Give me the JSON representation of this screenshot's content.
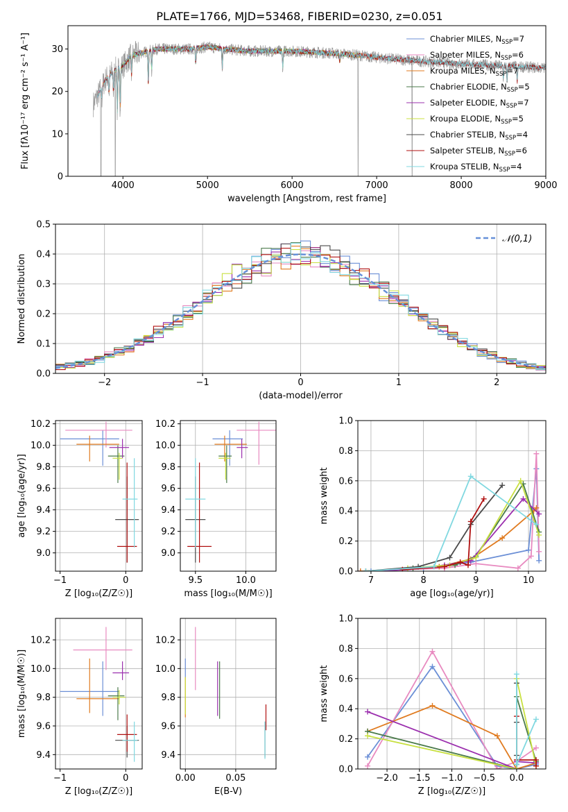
{
  "title": "PLATE=1766, MJD=53468, FIBERID=0230, z=0.051",
  "colors": {
    "chabrier_miles": "#6b8fd6",
    "salpeter_miles": "#e88ac0",
    "kroupa_miles": "#e07b20",
    "chabrier_elodie": "#4a7a4a",
    "salpeter_elodie": "#9b2fae",
    "kroupa_elodie": "#c8e040",
    "chabrier_stelib": "#4a4a4a",
    "salpeter_stelib": "#b01010",
    "kroupa_stelib": "#80d8e0",
    "gaussian": "#6690d8",
    "grid": "#b0b0b0"
  },
  "chart_data": [
    {
      "id": "spectrum",
      "type": "line",
      "xlabel": "wavelength [Angstrom, rest frame]",
      "ylabel": "Flux [fλ10⁻¹⁷ erg cm⁻² s⁻¹ A⁻¹]",
      "xlim": [
        3350,
        9000
      ],
      "ylim": [
        0,
        35.5
      ],
      "xticks": [
        4000,
        5000,
        6000,
        7000,
        8000,
        9000
      ],
      "yticks": [
        0,
        10,
        20,
        30
      ],
      "grid": false,
      "legend_position": "top-right",
      "legend": [
        "Chabrier MILES, N_SSP=7",
        "Salpeter MILES, N_SSP=6",
        "Kroupa MILES, N_SSP=7",
        "Chabrier ELODIE, N_SSP=5",
        "Salpeter ELODIE, N_SSP=7",
        "Kroupa ELODIE, N_SSP=5",
        "Chabrier STELIB, N_SSP=4",
        "Salpeter STELIB, N_SSP=6",
        "Kroupa STELIB, N_SSP=4"
      ],
      "model_ranges": [
        [
          3700,
          7400
        ],
        [
          3700,
          7400
        ],
        [
          3700,
          7400
        ],
        [
          3900,
          6800
        ],
        [
          3900,
          6800
        ],
        [
          3900,
          6800
        ],
        [
          3700,
          9000
        ],
        [
          3700,
          9000
        ],
        [
          3700,
          9000
        ]
      ],
      "continuum": [
        [
          3650,
          17
        ],
        [
          3700,
          19
        ],
        [
          3800,
          23
        ],
        [
          3900,
          25
        ],
        [
          4000,
          26
        ],
        [
          4100,
          28.5
        ],
        [
          4200,
          29
        ],
        [
          4400,
          30
        ],
        [
          4600,
          30
        ],
        [
          4800,
          30
        ],
        [
          5000,
          30.5
        ],
        [
          5200,
          30
        ],
        [
          5500,
          29.5
        ],
        [
          6000,
          29.5
        ],
        [
          6500,
          29
        ],
        [
          6800,
          28.5
        ],
        [
          7000,
          28
        ],
        [
          7300,
          27.5
        ],
        [
          7600,
          27
        ],
        [
          8000,
          26.5
        ],
        [
          8500,
          26
        ],
        [
          9000,
          25.5
        ]
      ],
      "absorption_lines": [
        [
          3750,
          3
        ],
        [
          3835,
          5
        ],
        [
          3889,
          6
        ],
        [
          3934,
          11
        ],
        [
          3968,
          11
        ],
        [
          4102,
          5
        ],
        [
          4300,
          8
        ],
        [
          4340,
          5
        ],
        [
          4861,
          4
        ],
        [
          5175,
          5
        ],
        [
          5890,
          4
        ],
        [
          6563,
          2
        ],
        [
          8498,
          3
        ],
        [
          8542,
          4
        ],
        [
          8662,
          4
        ]
      ],
      "observed_gaps": [
        [
          3740,
          0
        ],
        [
          3910,
          0
        ],
        [
          6780,
          0
        ],
        [
          7420,
          0
        ]
      ],
      "noise_amplitude": 1.4
    },
    {
      "id": "residuals",
      "type": "histogram",
      "xlabel": "(data-model)/error",
      "ylabel": "Normed distribution",
      "xlim": [
        -2.5,
        2.5
      ],
      "ylim": [
        0,
        0.5
      ],
      "xticks": [
        -2,
        -1,
        0,
        1,
        2
      ],
      "yticks": [
        0,
        0.1,
        0.2,
        0.3,
        0.4,
        0.5
      ],
      "grid": true,
      "bin_width": 0.1,
      "legend_position": "top-right",
      "legend": [
        "𝒩(0,1)"
      ]
    },
    {
      "id": "age_vs_z",
      "type": "errorbar",
      "xlabel": "Z [log₁₀(Z/Z☉)]",
      "ylabel": "age  [log₁₀(age/yr)]",
      "xlim": [
        -1.07,
        0.25
      ],
      "ylim": [
        8.83,
        10.23
      ],
      "xticks": [
        -1,
        0
      ],
      "yticks": [
        9.0,
        9.2,
        9.4,
        9.6,
        9.8,
        10.0,
        10.2
      ],
      "grid": true,
      "points": [
        {
          "x": -0.35,
          "xerr": [
            0.65,
            0.25
          ],
          "y": 10.06,
          "yerr": [
            0.25,
            0.08
          ]
        },
        {
          "x": -0.3,
          "xerr": [
            0.62,
            0.4
          ],
          "y": 10.14,
          "yerr": [
            0.16,
            0.08
          ]
        },
        {
          "x": -0.55,
          "xerr": [
            0.2,
            0.45
          ],
          "y": 10.01,
          "yerr": [
            0.16,
            0.08
          ]
        },
        {
          "x": -0.12,
          "xerr": [
            0.15,
            0.1
          ],
          "y": 9.9,
          "yerr": [
            0.25,
            0.1
          ]
        },
        {
          "x": -0.05,
          "xerr": [
            0.2,
            0.1
          ],
          "y": 9.98,
          "yerr": [
            0.1,
            0.08
          ]
        },
        {
          "x": -0.1,
          "xerr": [
            0.1,
            0.05
          ],
          "y": 9.88,
          "yerr": [
            0.2,
            0.05
          ]
        },
        {
          "x": 0.02,
          "xerr": [
            0.18,
            0.18
          ],
          "y": 9.31,
          "yerr": [
            0.4,
            0.4
          ]
        },
        {
          "x": 0.02,
          "xerr": [
            0.15,
            0.15
          ],
          "y": 9.06,
          "yerr": [
            0.15,
            0.78
          ]
        },
        {
          "x": 0.13,
          "xerr": [
            0.18,
            0.05
          ],
          "y": 9.5,
          "yerr": [
            0.45,
            0.38
          ]
        }
      ]
    },
    {
      "id": "age_vs_mass",
      "type": "errorbar",
      "xlabel": "mass [log₁₀(M/M☉)]",
      "ylabel": "",
      "xlim": [
        9.35,
        10.3
      ],
      "ylim": [
        8.83,
        10.23
      ],
      "xticks": [
        9.5,
        10.0
      ],
      "yticks": [
        9.0,
        9.2,
        9.4,
        9.6,
        9.8,
        10.0,
        10.2
      ],
      "grid": true,
      "points": [
        {
          "x": 9.84,
          "xerr": [
            0.17,
            0.13
          ],
          "y": 10.06,
          "yerr": [
            0.25,
            0.08
          ]
        },
        {
          "x": 10.13,
          "xerr": [
            0.22,
            0.17
          ],
          "y": 10.14,
          "yerr": [
            0.32,
            0.08
          ]
        },
        {
          "x": 9.79,
          "xerr": [
            0.1,
            0.22
          ],
          "y": 10.01,
          "yerr": [
            0.16,
            0.08
          ]
        },
        {
          "x": 9.81,
          "xerr": [
            0.08,
            0.05
          ],
          "y": 9.9,
          "yerr": [
            0.25,
            0.1
          ]
        },
        {
          "x": 9.96,
          "xerr": [
            0.05,
            0.06
          ],
          "y": 9.98,
          "yerr": [
            0.1,
            0.08
          ]
        },
        {
          "x": 9.8,
          "xerr": [
            0.07,
            0.05
          ],
          "y": 9.88,
          "yerr": [
            0.2,
            0.05
          ]
        },
        {
          "x": 9.5,
          "xerr": [
            0.1,
            0.1
          ],
          "y": 9.31,
          "yerr": [
            0.4,
            0.4
          ]
        },
        {
          "x": 9.54,
          "xerr": [
            0.12,
            0.12
          ],
          "y": 9.06,
          "yerr": [
            0.15,
            0.78
          ]
        },
        {
          "x": 9.5,
          "xerr": [
            0.1,
            0.1
          ],
          "y": 9.5,
          "yerr": [
            0.45,
            0.38
          ]
        }
      ]
    },
    {
      "id": "weight_vs_age",
      "type": "line",
      "xlabel": "age  [log₁₀(age/yr)]",
      "ylabel": "mass weight",
      "xlim": [
        6.75,
        10.33
      ],
      "ylim": [
        0,
        1.0
      ],
      "xticks": [
        7,
        8,
        9,
        10
      ],
      "yticks": [
        0.0,
        0.2,
        0.4,
        0.6,
        0.8,
        1.0
      ],
      "grid": true,
      "series": [
        {
          "x": [
            6.8,
            7.0,
            7.6,
            8.0,
            8.3,
            8.9,
            10.0,
            10.15,
            10.2
          ],
          "y": [
            0.0,
            0.0,
            0.01,
            0.02,
            0.03,
            0.06,
            0.14,
            0.68,
            0.07
          ]
        },
        {
          "x": [
            6.8,
            7.6,
            8.4,
            9.0,
            9.8,
            10.05,
            10.15,
            10.2
          ],
          "y": [
            0.0,
            0.01,
            0.02,
            0.05,
            0.02,
            0.1,
            0.78,
            0.13
          ]
        },
        {
          "x": [
            6.8,
            7.6,
            8.3,
            8.9,
            9.5,
            10.1,
            10.15
          ],
          "y": [
            0.0,
            0.01,
            0.03,
            0.08,
            0.22,
            0.4,
            0.42
          ]
        },
        {
          "x": [
            6.9,
            7.8,
            8.6,
            9.0,
            9.9,
            10.2
          ],
          "y": [
            0.0,
            0.02,
            0.04,
            0.1,
            0.58,
            0.26
          ]
        },
        {
          "x": [
            6.9,
            7.7,
            8.4,
            8.9,
            9.9,
            10.2
          ],
          "y": [
            0.0,
            0.01,
            0.04,
            0.07,
            0.48,
            0.38
          ]
        },
        {
          "x": [
            6.9,
            7.7,
            8.5,
            9.0,
            9.85,
            10.2
          ],
          "y": [
            0.0,
            0.02,
            0.04,
            0.09,
            0.6,
            0.24
          ]
        },
        {
          "x": [
            6.9,
            7.9,
            8.5,
            8.9,
            9.5
          ],
          "y": [
            0.0,
            0.03,
            0.09,
            0.31,
            0.57
          ]
        },
        {
          "x": [
            7.6,
            8.4,
            8.7,
            8.85,
            8.9,
            9.15
          ],
          "y": [
            0.01,
            0.03,
            0.06,
            0.04,
            0.33,
            0.48
          ]
        },
        {
          "x": [
            6.9,
            8.2,
            8.9,
            10.15
          ],
          "y": [
            0.0,
            0.03,
            0.63,
            0.31
          ]
        }
      ]
    },
    {
      "id": "mass_vs_z",
      "type": "errorbar",
      "xlabel": "Z [log₁₀(Z/Z☉)]",
      "ylabel": "mass [log₁₀(M/M☉)]",
      "xlim": [
        -1.07,
        0.25
      ],
      "ylim": [
        9.3,
        10.35
      ],
      "xticks": [
        -1,
        0
      ],
      "yticks": [
        9.4,
        9.6,
        9.8,
        10.0,
        10.2
      ],
      "grid": true,
      "points": [
        {
          "x": -0.35,
          "xerr": [
            0.65,
            0.25
          ],
          "y": 9.84,
          "yerr": [
            0.17,
            0.21
          ]
        },
        {
          "x": -0.3,
          "xerr": [
            0.5,
            0.4
          ],
          "y": 10.13,
          "yerr": [
            0.14,
            0.16
          ]
        },
        {
          "x": -0.55,
          "xerr": [
            0.2,
            0.45
          ],
          "y": 9.79,
          "yerr": [
            0.1,
            0.28
          ]
        },
        {
          "x": -0.12,
          "xerr": [
            0.15,
            0.1
          ],
          "y": 9.81,
          "yerr": [
            0.17,
            0.06
          ]
        },
        {
          "x": -0.05,
          "xerr": [
            0.15,
            0.1
          ],
          "y": 9.97,
          "yerr": [
            0.05,
            0.08
          ]
        },
        {
          "x": -0.1,
          "xerr": [
            0.1,
            0.1
          ],
          "y": 9.8,
          "yerr": [
            0.05,
            0.05
          ]
        },
        {
          "x": 0.02,
          "xerr": [
            0.18,
            0.18
          ],
          "y": 9.5,
          "yerr": [
            0.12,
            0.1
          ]
        },
        {
          "x": 0.02,
          "xerr": [
            0.15,
            0.15
          ],
          "y": 9.54,
          "yerr": [
            0.12,
            0.14
          ]
        },
        {
          "x": 0.13,
          "xerr": [
            0.18,
            0.05
          ],
          "y": 9.5,
          "yerr": [
            0.15,
            0.13
          ]
        }
      ]
    },
    {
      "id": "mass_vs_ebv",
      "type": "errorbar",
      "xlabel": "E(B-V)",
      "ylabel": "",
      "xlim": [
        -0.005,
        0.09
      ],
      "ylim": [
        9.3,
        10.35
      ],
      "xticks": [
        0.0,
        0.05
      ],
      "yticks": [
        9.4,
        9.6,
        9.8,
        10.0,
        10.2
      ],
      "grid": true,
      "points": [
        {
          "x": 0.0,
          "xerr": [
            0,
            0
          ],
          "y": 10.0,
          "yerr": [
            0.06,
            0.07
          ]
        },
        {
          "x": 0.01,
          "xerr": [
            0,
            0
          ],
          "y": 10.07,
          "yerr": [
            0.22,
            0.22
          ]
        },
        {
          "x": 0.0,
          "xerr": [
            0,
            0
          ],
          "y": 9.8,
          "yerr": [
            0.14,
            0.14
          ]
        },
        {
          "x": 0.034,
          "xerr": [
            0,
            0
          ],
          "y": 9.8,
          "yerr": [
            0.15,
            0.25
          ]
        },
        {
          "x": 0.032,
          "xerr": [
            0,
            0
          ],
          "y": 9.8,
          "yerr": [
            0.13,
            0.25
          ]
        },
        {
          "x": 0.0,
          "xerr": [
            0,
            0
          ],
          "y": 9.82,
          "yerr": [
            0.14,
            0.12
          ]
        },
        {
          "x": 0.079,
          "xerr": [
            0,
            0
          ],
          "y": 9.51,
          "yerr": [
            0.13,
            0.12
          ]
        },
        {
          "x": 0.08,
          "xerr": [
            0,
            0
          ],
          "y": 9.62,
          "yerr": [
            0.05,
            0.13
          ]
        },
        {
          "x": 0.079,
          "xerr": [
            0,
            0
          ],
          "y": 9.5,
          "yerr": [
            0.13,
            0.13
          ]
        }
      ]
    },
    {
      "id": "weight_vs_z",
      "type": "line",
      "xlabel": "Z [log₁₀(Z/Z☉)]",
      "ylabel": "mass weight",
      "xlim": [
        -2.45,
        0.45
      ],
      "ylim": [
        0,
        1.0
      ],
      "xticks": [
        -2.0,
        -1.5,
        -1.0,
        -0.5,
        0.0
      ],
      "yticks": [
        0.0,
        0.2,
        0.4,
        0.6,
        0.8,
        1.0
      ],
      "grid": true,
      "series": [
        {
          "x": [
            -2.3,
            -1.3,
            -0.3,
            0.0,
            0.3
          ],
          "y": [
            0.08,
            0.68,
            0.02,
            0.0,
            0.03
          ]
        },
        {
          "x": [
            -2.3,
            -1.3,
            -0.3,
            0.0,
            0.3
          ],
          "y": [
            0.02,
            0.78,
            0.0,
            0.05,
            0.14
          ]
        },
        {
          "x": [
            -2.3,
            -1.3,
            -0.3,
            0.0,
            0.3
          ],
          "y": [
            0.25,
            0.42,
            0.22,
            0.0,
            0.04
          ]
        },
        {
          "x": [
            -2.3,
            0.0,
            0.0,
            0.3
          ],
          "y": [
            0.25,
            0.0,
            0.48,
            0.05
          ]
        },
        {
          "x": [
            -2.3,
            0.0,
            0.0,
            0.3
          ],
          "y": [
            0.38,
            0.0,
            0.05,
            0.04
          ]
        },
        {
          "x": [
            -2.3,
            0.0,
            0.0,
            0.3
          ],
          "y": [
            0.22,
            0.0,
            0.6,
            0.02
          ]
        },
        {
          "x": [
            0.0,
            0.0,
            0.0,
            0.0
          ],
          "y": [
            0.57,
            0.09,
            0.31,
            0.03
          ]
        },
        {
          "x": [
            0.0,
            0.0,
            0.3,
            0.3
          ],
          "y": [
            0.35,
            0.06,
            0.06,
            0.02
          ]
        },
        {
          "x": [
            0.0,
            0.0,
            0.3
          ],
          "y": [
            0.63,
            0.03,
            0.33
          ]
        }
      ]
    }
  ]
}
